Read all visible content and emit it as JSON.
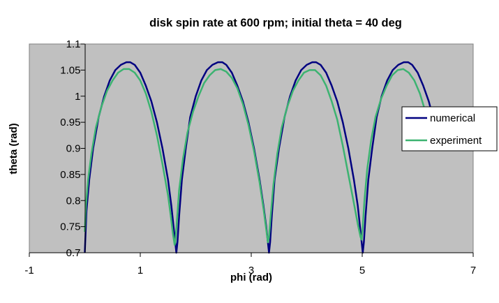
{
  "chart_data": {
    "type": "line",
    "title": "disk spin rate at 600 rpm; initial theta = 40 deg",
    "xlabel": "phi (rad)",
    "ylabel": "theta (rad)",
    "xlim": [
      -1,
      7
    ],
    "ylim": [
      0.7,
      1.1
    ],
    "xticks": [
      "-1",
      "1",
      "3",
      "5",
      "7"
    ],
    "xtick_values": [
      -1,
      1,
      3,
      5,
      7
    ],
    "yticks": [
      "0.7",
      "0.75",
      "0.8",
      "0.85",
      "0.9",
      "0.95",
      "1",
      "1.05",
      "1.1"
    ],
    "ytick_values": [
      0.7,
      0.75,
      0.8,
      0.85,
      0.9,
      0.95,
      1,
      1.05,
      1.1
    ],
    "grid": false,
    "plot_background": "#c0c0c0",
    "legend": {
      "position": "right"
    },
    "series": [
      {
        "name": "numerical",
        "color": "#000080",
        "x": [
          0.0,
          0.03,
          0.08,
          0.15,
          0.25,
          0.35,
          0.45,
          0.55,
          0.65,
          0.75,
          0.82,
          0.9,
          1.0,
          1.1,
          1.2,
          1.3,
          1.4,
          1.5,
          1.56,
          1.6,
          1.63,
          1.65,
          1.67,
          1.7,
          1.75,
          1.82,
          1.9,
          2.0,
          2.1,
          2.2,
          2.3,
          2.4,
          2.48,
          2.55,
          2.65,
          2.75,
          2.85,
          2.95,
          3.05,
          3.15,
          3.22,
          3.27,
          3.3,
          3.32,
          3.34,
          3.37,
          3.42,
          3.5,
          3.6,
          3.7,
          3.8,
          3.9,
          4.0,
          4.1,
          4.17,
          4.25,
          4.35,
          4.45,
          4.55,
          4.65,
          4.75,
          4.85,
          4.92,
          4.96,
          4.99,
          5.01,
          5.03,
          5.06,
          5.11,
          5.18,
          5.26,
          5.35,
          5.45,
          5.55,
          5.65,
          5.75,
          5.83,
          5.9,
          6.0,
          6.1,
          6.2,
          6.3
        ],
        "y": [
          0.7,
          0.78,
          0.84,
          0.9,
          0.96,
          1.0,
          1.03,
          1.05,
          1.06,
          1.065,
          1.065,
          1.06,
          1.045,
          1.02,
          0.99,
          0.95,
          0.9,
          0.84,
          0.79,
          0.75,
          0.72,
          0.7,
          0.72,
          0.77,
          0.84,
          0.9,
          0.96,
          1.0,
          1.03,
          1.05,
          1.06,
          1.065,
          1.065,
          1.06,
          1.045,
          1.02,
          0.99,
          0.95,
          0.9,
          0.84,
          0.79,
          0.75,
          0.72,
          0.7,
          0.72,
          0.77,
          0.84,
          0.9,
          0.96,
          1.0,
          1.03,
          1.05,
          1.06,
          1.065,
          1.065,
          1.06,
          1.045,
          1.02,
          0.99,
          0.95,
          0.9,
          0.84,
          0.79,
          0.75,
          0.72,
          0.7,
          0.72,
          0.77,
          0.84,
          0.9,
          0.96,
          1.0,
          1.03,
          1.05,
          1.06,
          1.065,
          1.065,
          1.06,
          1.045,
          1.02,
          0.99,
          0.95
        ]
      },
      {
        "name": "experiment",
        "color": "#3cb371",
        "x": [
          0.0,
          0.02,
          0.06,
          0.12,
          0.2,
          0.3,
          0.4,
          0.5,
          0.6,
          0.7,
          0.8,
          0.9,
          1.0,
          1.1,
          1.2,
          1.3,
          1.4,
          1.5,
          1.55,
          1.59,
          1.62,
          1.63,
          1.66,
          1.7,
          1.77,
          1.85,
          1.95,
          2.05,
          2.15,
          2.25,
          2.35,
          2.45,
          2.55,
          2.65,
          2.75,
          2.85,
          2.95,
          3.05,
          3.15,
          3.22,
          3.27,
          3.3,
          3.32,
          3.35,
          3.4,
          3.47,
          3.55,
          3.65,
          3.75,
          3.85,
          3.95,
          4.05,
          4.15,
          4.25,
          4.35,
          4.45,
          4.55,
          4.65,
          4.75,
          4.85,
          4.92,
          4.97,
          4.99,
          5.01,
          5.04,
          5.09,
          5.16,
          5.24,
          5.34,
          5.44,
          5.54,
          5.64,
          5.74,
          5.84,
          5.94,
          6.04,
          6.14,
          6.24,
          6.3
        ],
        "y": [
          0.74,
          0.79,
          0.84,
          0.89,
          0.94,
          0.98,
          1.01,
          1.03,
          1.045,
          1.052,
          1.052,
          1.045,
          1.03,
          1.005,
          0.97,
          0.925,
          0.87,
          0.81,
          0.77,
          0.735,
          0.715,
          0.72,
          0.76,
          0.82,
          0.88,
          0.93,
          0.97,
          1.0,
          1.025,
          1.04,
          1.05,
          1.052,
          1.047,
          1.035,
          1.015,
          0.985,
          0.945,
          0.895,
          0.835,
          0.785,
          0.745,
          0.72,
          0.73,
          0.77,
          0.83,
          0.89,
          0.94,
          0.98,
          1.01,
          1.03,
          1.045,
          1.05,
          1.05,
          1.04,
          1.02,
          0.99,
          0.955,
          0.905,
          0.85,
          0.795,
          0.755,
          0.73,
          0.725,
          0.75,
          0.8,
          0.86,
          0.915,
          0.96,
          0.995,
          1.02,
          1.04,
          1.05,
          1.052,
          1.045,
          1.03,
          1.005,
          0.97,
          0.93,
          0.9
        ]
      }
    ]
  }
}
